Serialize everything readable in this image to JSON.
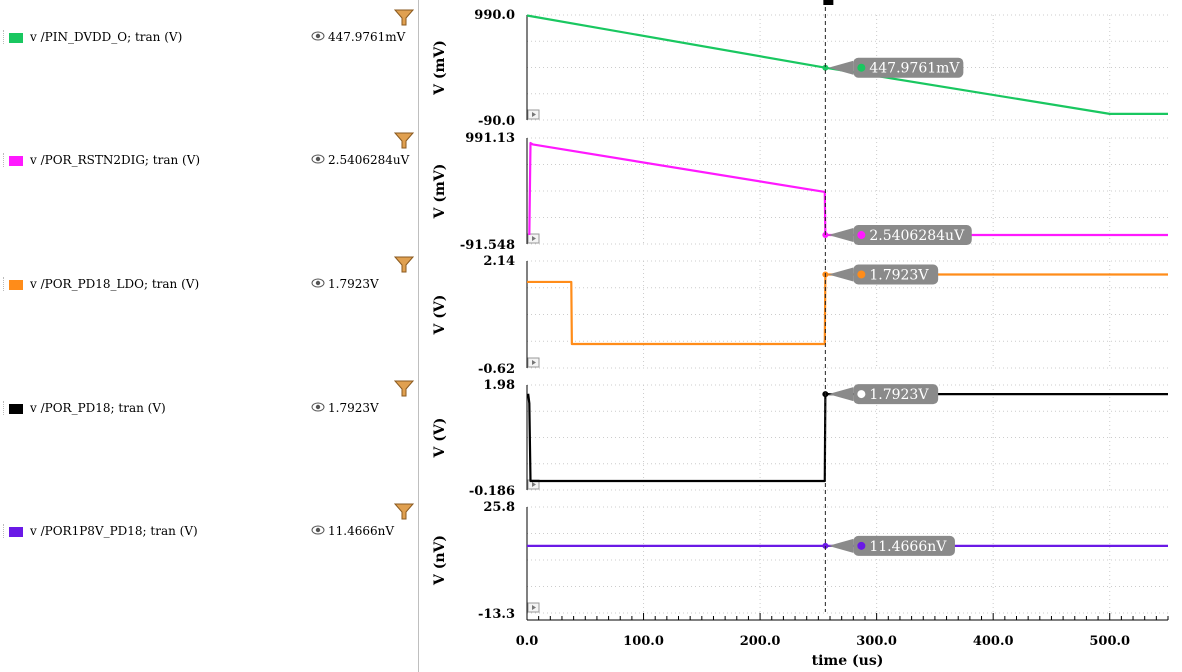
{
  "legend": {
    "items": [
      {
        "name": "v /PIN_DVDD_O; tran (V)",
        "value": "447.9761mV",
        "color": "#19c760"
      },
      {
        "name": "v /POR_RSTN2DIG; tran (V)",
        "value": "2.5406284uV",
        "color": "#ff19ff"
      },
      {
        "name": "v /POR_PD18_LDO; tran (V)",
        "value": "1.7923V",
        "color": "#ff8c19"
      },
      {
        "name": "v /POR_PD18; tran (V)",
        "value": "1.7923V",
        "color": "#000000"
      },
      {
        "name": "v /POR1P8V_PD18; tran (V)",
        "value": "11.4666nV",
        "color": "#6a19e6"
      }
    ]
  },
  "chart_data": {
    "type": "line",
    "xlabel": "time (us)",
    "xlim": [
      0,
      550
    ],
    "xticks": [
      0,
      100,
      200,
      300,
      400,
      500
    ],
    "xtick_labels": [
      "0.0",
      "100.0",
      "200.0",
      "300.0",
      "400.0",
      "500.0"
    ],
    "cursor_x": 256,
    "grid": true,
    "panels": [
      {
        "name": "v /PIN_DVDD_O; tran (V)",
        "ylabel": "V (mV)",
        "ylim": [
          -90.0,
          990.0
        ],
        "ytick_labels": [
          "990.0",
          "-90.0"
        ],
        "color": "#19c760",
        "marker_label": "447.9761mV",
        "marker_y": 447.9761,
        "x": [
          0,
          256,
          500,
          550
        ],
        "y": [
          985,
          447.98,
          -27,
          -27
        ]
      },
      {
        "name": "v /POR_RSTN2DIG; tran (V)",
        "ylabel": "V (mV)",
        "ylim": [
          -91.548,
          991.13
        ],
        "ytick_labels": [
          "991.13",
          "-91.548"
        ],
        "color": "#ff19ff",
        "marker_label": "2.5406284uV",
        "marker_y": 0.0025,
        "x": [
          2,
          3,
          5,
          255.5,
          256,
          550
        ],
        "y": [
          0,
          940,
          925,
          440,
          0.0025,
          0.0025
        ]
      },
      {
        "name": "v /POR_PD18_LDO; tran (V)",
        "ylabel": "V (V)",
        "ylim": [
          -0.62,
          2.14
        ],
        "ytick_labels": [
          "2.14",
          "-0.62"
        ],
        "color": "#ff8c19",
        "marker_label": "1.7923V",
        "marker_y": 1.7923,
        "x": [
          0,
          38,
          38.5,
          255.5,
          256,
          550
        ],
        "y": [
          1.6,
          1.6,
          0.0,
          0.0,
          1.7923,
          1.7923
        ]
      },
      {
        "name": "v /POR_PD18; tran (V)",
        "ylabel": "V (V)",
        "ylim": [
          -0.186,
          1.98
        ],
        "ytick_labels": [
          "1.98",
          "-0.186"
        ],
        "color": "#000000",
        "marker_label": "1.7923V",
        "marker_y": 1.7923,
        "x": [
          1,
          2,
          3,
          255.5,
          256,
          550
        ],
        "y": [
          1.8,
          1.6,
          0.0,
          0.0,
          1.7923,
          1.7923
        ]
      },
      {
        "name": "v /POR1P8V_PD18; tran (V)",
        "ylabel": "V (nV)",
        "ylim": [
          -13.3,
          25.8
        ],
        "ytick_labels": [
          "25.8",
          "-13.3"
        ],
        "color": "#6a19e6",
        "marker_label": "11.4666nV",
        "marker_y": 11.4666,
        "x": [
          0,
          550
        ],
        "y": [
          11.4666,
          11.4666
        ]
      }
    ]
  }
}
